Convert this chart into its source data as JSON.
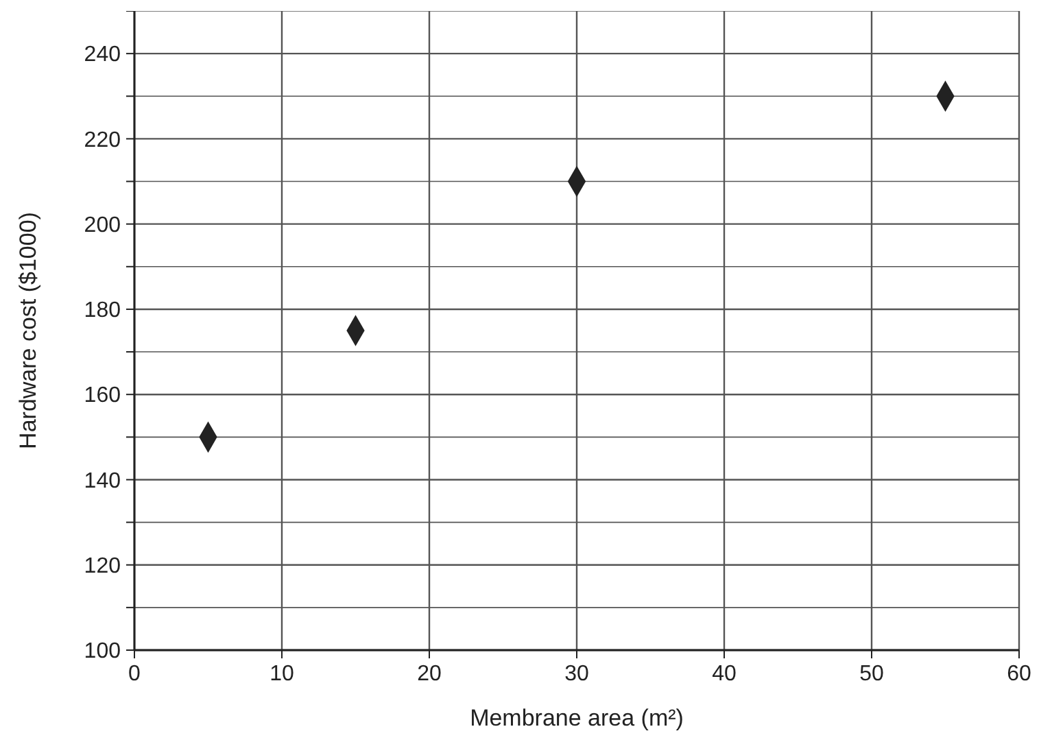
{
  "chart_data": {
    "type": "scatter",
    "xlabel": "Membrane area (m²)",
    "ylabel": "Hardware cost ($1000)",
    "x": [
      5,
      15,
      30,
      55
    ],
    "values": [
      150,
      175,
      210,
      230
    ],
    "color": "#222222",
    "marker": "diamond",
    "xlim": [
      0,
      60
    ],
    "xticks": [
      0,
      10,
      20,
      30,
      40,
      50,
      60
    ],
    "ylim": [
      100,
      250
    ],
    "yticks": [
      100,
      {
        "value": 110,
        "label": null
      },
      120,
      {
        "value": 130,
        "label": null
      },
      140,
      {
        "value": 150,
        "label": null
      },
      160,
      {
        "value": 170,
        "label": null
      },
      180,
      {
        "value": 190,
        "label": null
      },
      200,
      {
        "value": 210,
        "label": null
      },
      220,
      {
        "value": 230,
        "label": null
      },
      240,
      {
        "value": 250,
        "label": null
      }
    ],
    "grid": true
  }
}
